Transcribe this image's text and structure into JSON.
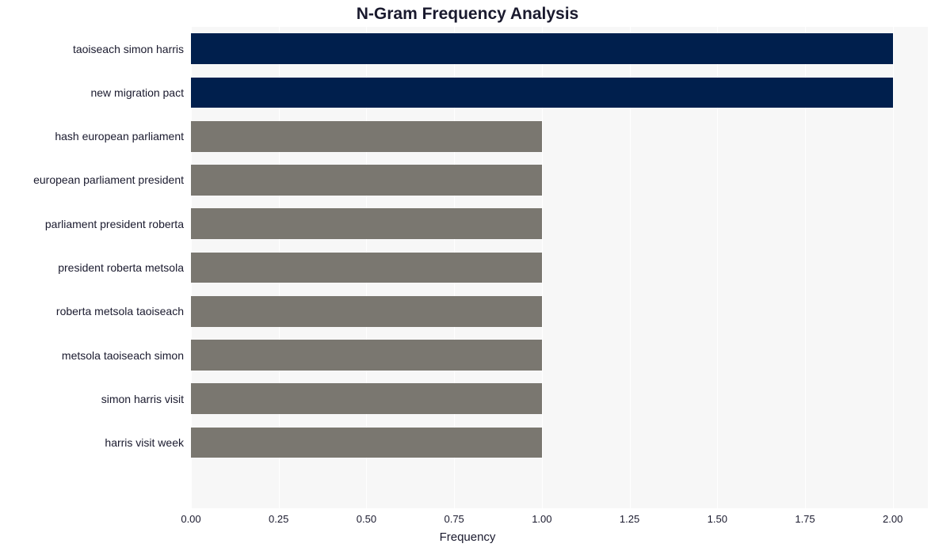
{
  "chart": {
    "type": "bar-horizontal",
    "title": "N-Gram Frequency Analysis",
    "title_fontsize": 21,
    "title_fontweight": "bold",
    "xlabel": "Frequency",
    "xlabel_fontsize": 15,
    "background_color": "#ffffff",
    "band_color": "#f7f7f7",
    "grid_color": "#ffffff",
    "axis_text_color": "#1a1a2e",
    "x": {
      "min": 0.0,
      "max": 2.1,
      "tick_step": 0.25,
      "ticks": [
        "0.00",
        "0.25",
        "0.50",
        "0.75",
        "1.00",
        "1.25",
        "1.50",
        "1.75",
        "2.00"
      ],
      "tick_fontsize": 13
    },
    "y_label_fontsize": 14,
    "bar_height_ratio": 0.7,
    "colors": {
      "high": "#001f4d",
      "low": "#7a7770"
    },
    "series": [
      {
        "label": "taoiseach simon harris",
        "value": 2,
        "color": "#001f4d"
      },
      {
        "label": "new migration pact",
        "value": 2,
        "color": "#001f4d"
      },
      {
        "label": "hash european parliament",
        "value": 1,
        "color": "#7a7770"
      },
      {
        "label": "european parliament president",
        "value": 1,
        "color": "#7a7770"
      },
      {
        "label": "parliament president roberta",
        "value": 1,
        "color": "#7a7770"
      },
      {
        "label": "president roberta metsola",
        "value": 1,
        "color": "#7a7770"
      },
      {
        "label": "roberta metsola taoiseach",
        "value": 1,
        "color": "#7a7770"
      },
      {
        "label": "metsola taoiseach simon",
        "value": 1,
        "color": "#7a7770"
      },
      {
        "label": "simon harris visit",
        "value": 1,
        "color": "#7a7770"
      },
      {
        "label": "harris visit week",
        "value": 1,
        "color": "#7a7770"
      }
    ]
  }
}
